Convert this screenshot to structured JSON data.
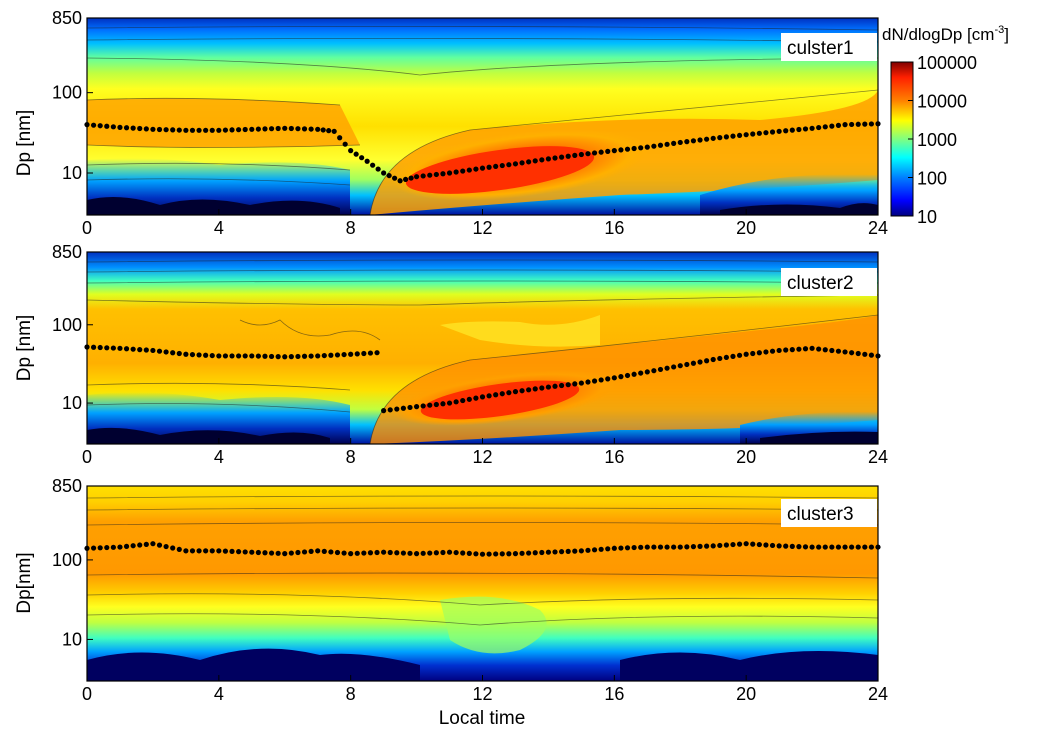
{
  "chart_data": [
    {
      "type": "heatmap",
      "panel_label": "culster1",
      "ylabel": "Dp [nm]",
      "xlabel": "",
      "xlim": [
        0,
        24
      ],
      "ylim": [
        3,
        850
      ],
      "yscale": "log",
      "xticks": [
        "0",
        "4",
        "8",
        "12",
        "16",
        "20",
        "24"
      ],
      "yticks": [
        "10",
        "100",
        "850"
      ],
      "mode_diameter": {
        "x": [
          0,
          1,
          2,
          3,
          4,
          5,
          6,
          7,
          7.5,
          8,
          8.5,
          9,
          9.5,
          10,
          11,
          12,
          13,
          14,
          15,
          16,
          17,
          18,
          19,
          20,
          21,
          22,
          23,
          24
        ],
        "y": [
          40,
          37,
          35,
          34,
          34,
          35,
          36,
          35,
          33,
          19,
          14,
          10,
          8,
          9,
          10,
          11.5,
          13,
          15,
          17,
          19,
          21,
          24,
          27,
          30,
          33,
          36,
          40,
          41
        ]
      }
    },
    {
      "type": "heatmap",
      "panel_label": "cluster2",
      "ylabel": "Dp [nm]",
      "xlabel": "",
      "xlim": [
        0,
        24
      ],
      "ylim": [
        3,
        850
      ],
      "yscale": "log",
      "xticks": [
        "0",
        "4",
        "8",
        "12",
        "16",
        "20",
        "24"
      ],
      "yticks": [
        "10",
        "100",
        "850"
      ],
      "mode_diameter": {
        "x": [
          0,
          1,
          2,
          3,
          4,
          5,
          6,
          7,
          8,
          8.8,
          9,
          10,
          11,
          12,
          13,
          14,
          15,
          16,
          17,
          18,
          19,
          20,
          21,
          22,
          23,
          24
        ],
        "y": [
          52,
          50,
          47,
          42,
          40,
          40,
          39,
          40,
          42,
          44,
          8,
          9,
          10,
          12,
          14,
          16,
          18,
          21,
          25,
          30,
          36,
          42,
          47,
          50,
          45,
          40
        ]
      }
    },
    {
      "type": "heatmap",
      "panel_label": "cluster3",
      "ylabel": "Dp[nm]",
      "xlabel": "Local time",
      "xlim": [
        0,
        24
      ],
      "ylim": [
        3,
        850
      ],
      "yscale": "log",
      "xticks": [
        "0",
        "4",
        "8",
        "12",
        "16",
        "20",
        "24"
      ],
      "yticks": [
        "10",
        "100",
        "850"
      ],
      "mode_diameter": {
        "x": [
          0,
          1,
          2,
          3,
          4,
          5,
          6,
          7,
          8,
          9,
          10,
          11,
          12,
          13,
          14,
          15,
          16,
          17,
          18,
          19,
          20,
          21,
          22,
          23,
          24
        ],
        "y": [
          140,
          145,
          160,
          130,
          130,
          125,
          120,
          130,
          120,
          125,
          120,
          125,
          118,
          120,
          125,
          130,
          140,
          145,
          145,
          150,
          160,
          150,
          145,
          145,
          145
        ]
      }
    }
  ],
  "colorbar": {
    "label": "dN/dlogDp [cm",
    "label_sup": "-3",
    "label_end": "]",
    "ticks": [
      "100000",
      "10000",
      "1000",
      "100",
      "10"
    ],
    "colors": [
      "#000080",
      "#0000ff",
      "#0080ff",
      "#00ffff",
      "#80ff80",
      "#ffff00",
      "#ffc000",
      "#ff8000",
      "#ff3000",
      "#800000"
    ]
  }
}
